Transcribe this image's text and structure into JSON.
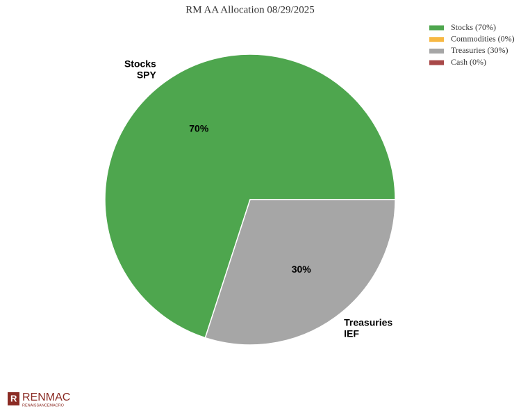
{
  "chart_data": {
    "type": "pie",
    "title": "RM AA Allocation 08/29/2025",
    "categories": [
      "Stocks",
      "Commodities",
      "Treasuries",
      "Cash"
    ],
    "values": [
      70,
      0,
      30,
      0
    ],
    "value_labels": [
      "70%",
      null,
      "30%",
      null
    ],
    "colors": [
      "#4ea64e",
      "#f7b843",
      "#a6a6a6",
      "#a84848"
    ],
    "legend_labels": [
      "Stocks (70%)",
      "Commodities (0%)",
      "Treasuries (30%)",
      "Cash (0%)"
    ],
    "outer_labels": [
      [
        "Stocks",
        "SPY"
      ],
      null,
      [
        "Treasuries",
        "IEF"
      ],
      null
    ],
    "legend": "top-right"
  },
  "logo": {
    "name": "RENMAC",
    "subtitle": "RENAISSANCEMACRO"
  }
}
